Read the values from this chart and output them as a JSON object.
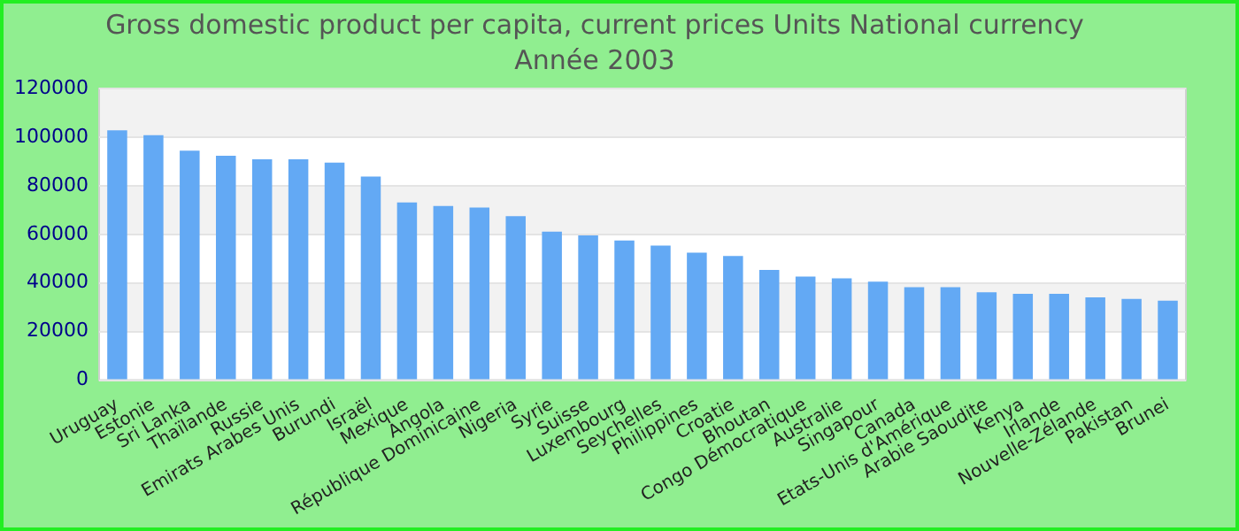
{
  "chart_data": {
    "type": "bar",
    "title": "Gross domestic product per capita, current prices Units National currency",
    "subtitle": "Année 2003",
    "categories": [
      "Uruguay",
      "Estonie",
      "Sri Lanka",
      "Thaïlande",
      "Russie",
      "Emirats Arabes Unis",
      "Burundi",
      "Israël",
      "Mexique",
      "Angola",
      "République Dominicaine",
      "Nigeria",
      "Syrie",
      "Suisse",
      "Luxembourg",
      "Seychelles",
      "Philippines",
      "Croatie",
      "Bhoutan",
      "Congo Démocratique",
      "Australie",
      "Singapour",
      "Canada",
      "Etats-Unis d'Amérique",
      "Arabie Saoudite",
      "Kenya",
      "Irlande",
      "Nouvelle-Zélande",
      "Pakistan",
      "Brunei"
    ],
    "values": [
      102800,
      100800,
      94400,
      92300,
      90900,
      90900,
      89500,
      83800,
      73100,
      71700,
      71000,
      67500,
      61100,
      59600,
      57500,
      55400,
      52500,
      51100,
      45400,
      42600,
      41900,
      40500,
      38300,
      38300,
      36200,
      35500,
      35500,
      34100,
      33400,
      32700
    ],
    "color": "#63a9f4",
    "ylim": [
      0,
      120000
    ],
    "yticks": [
      0,
      20000,
      40000,
      60000,
      80000,
      100000,
      120000
    ],
    "grid": "y",
    "legend": false
  }
}
